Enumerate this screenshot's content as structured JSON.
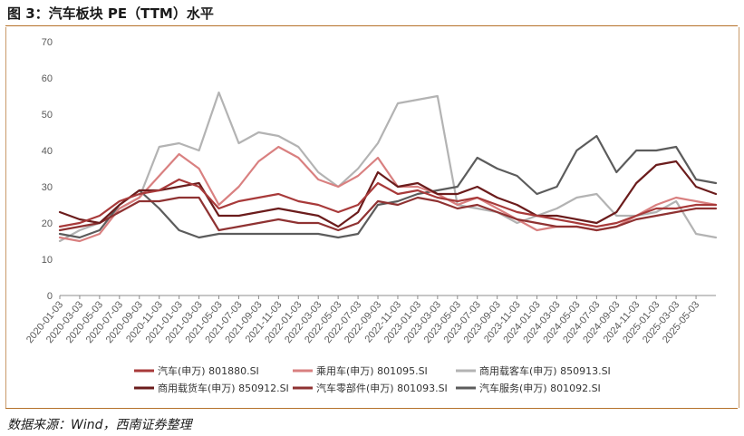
{
  "figure": {
    "title": "图 3：汽车板块 PE（TTM）水平",
    "source": "数据来源：Wind，西南证券整理"
  },
  "chart_data": {
    "type": "line",
    "title": "汽车板块 PE（TTM）水平",
    "xlabel": "",
    "ylabel": "",
    "ylim": [
      0,
      70
    ],
    "yticks": [
      0,
      10,
      20,
      30,
      40,
      50,
      60,
      70
    ],
    "grid": false,
    "legend_position": "bottom",
    "x": [
      "2020-01-03",
      "2020-03-03",
      "2020-05-03",
      "2020-07-03",
      "2020-09-03",
      "2020-11-03",
      "2021-01-03",
      "2021-03-03",
      "2021-05-03",
      "2021-07-03",
      "2021-09-03",
      "2021-11-03",
      "2022-01-03",
      "2022-03-03",
      "2022-05-03",
      "2022-07-03",
      "2022-09-03",
      "2022-11-03",
      "2023-01-03",
      "2023-03-03",
      "2023-05-03",
      "2023-07-03",
      "2023-09-03",
      "2023-11-03",
      "2024-01-03",
      "2024-03-03",
      "2024-05-03",
      "2024-07-03",
      "2024-09-03",
      "2024-11-03",
      "2025-01-03",
      "2025-03-03",
      "2025-05-03",
      "2025-06-03"
    ],
    "x_tick_labels": [
      "2020-01-03",
      "2020-03-03",
      "2020-05-03",
      "2020-07-03",
      "2020-09-03",
      "2020-11-03",
      "2021-01-03",
      "2021-03-03",
      "2021-05-03",
      "2021-07-03",
      "2021-09-03",
      "2021-11-03",
      "2022-01-03",
      "2022-03-03",
      "2022-05-03",
      "2022-07-03",
      "2022-09-03",
      "2022-11-03",
      "2023-01-03",
      "2023-03-03",
      "2023-05-03",
      "2023-07-03",
      "2023-09-03",
      "2023-11-03",
      "2024-01-03",
      "2024-03-03",
      "2024-05-03",
      "2024-07-03",
      "2024-09-03",
      "2024-11-03",
      "2025-01-03",
      "2025-03-03",
      "2025-05-03"
    ],
    "series": [
      {
        "name": "汽车(申万) 801880.SI",
        "color": "#a83a3a",
        "values": [
          19,
          20,
          22,
          26,
          28,
          29,
          32,
          30,
          24,
          26,
          27,
          28,
          26,
          25,
          23,
          25,
          31,
          28,
          29,
          27,
          26,
          27,
          25,
          23,
          22,
          21,
          20,
          19,
          20,
          22,
          24,
          24,
          25,
          25
        ]
      },
      {
        "name": "乘用车(申万) 801095.SI",
        "color": "#d98080",
        "values": [
          16,
          15,
          17,
          24,
          27,
          33,
          39,
          35,
          25,
          30,
          37,
          41,
          38,
          32,
          30,
          33,
          38,
          30,
          30,
          28,
          25,
          27,
          24,
          21,
          18,
          19,
          19,
          18,
          19,
          22,
          25,
          27,
          26,
          25
        ]
      },
      {
        "name": "商用载客车(申万) 850913.SI",
        "color": "#b3b3b3",
        "values": [
          15,
          18,
          20,
          24,
          27,
          41,
          42,
          40,
          56,
          42,
          45,
          44,
          41,
          34,
          30,
          35,
          42,
          53,
          54,
          55,
          25,
          24,
          23,
          20,
          22,
          24,
          27,
          28,
          22,
          22,
          23,
          26,
          17,
          16
        ]
      },
      {
        "name": "商用载货车(申万) 850912.SI",
        "color": "#6b1c1c",
        "values": [
          23,
          21,
          20,
          25,
          29,
          29,
          30,
          31,
          22,
          22,
          23,
          24,
          23,
          22,
          19,
          23,
          34,
          30,
          31,
          28,
          28,
          30,
          27,
          25,
          22,
          22,
          21,
          20,
          23,
          31,
          36,
          37,
          30,
          28
        ]
      },
      {
        "name": "汽车零部件(申万) 801093.SI",
        "color": "#8f3232",
        "values": [
          18,
          19,
          20,
          23,
          26,
          26,
          27,
          27,
          18,
          19,
          20,
          21,
          20,
          20,
          18,
          20,
          26,
          25,
          27,
          26,
          24,
          25,
          23,
          21,
          20,
          19,
          19,
          18,
          19,
          21,
          22,
          23,
          24,
          24
        ]
      },
      {
        "name": "汽车服务(申万) 801092.SI",
        "color": "#5c5c5c",
        "values": [
          17,
          16,
          18,
          25,
          29,
          24,
          18,
          16,
          17,
          17,
          17,
          17,
          17,
          17,
          16,
          17,
          25,
          26,
          28,
          29,
          30,
          38,
          35,
          33,
          28,
          30,
          40,
          44,
          34,
          40,
          40,
          41,
          32,
          31
        ]
      }
    ]
  }
}
